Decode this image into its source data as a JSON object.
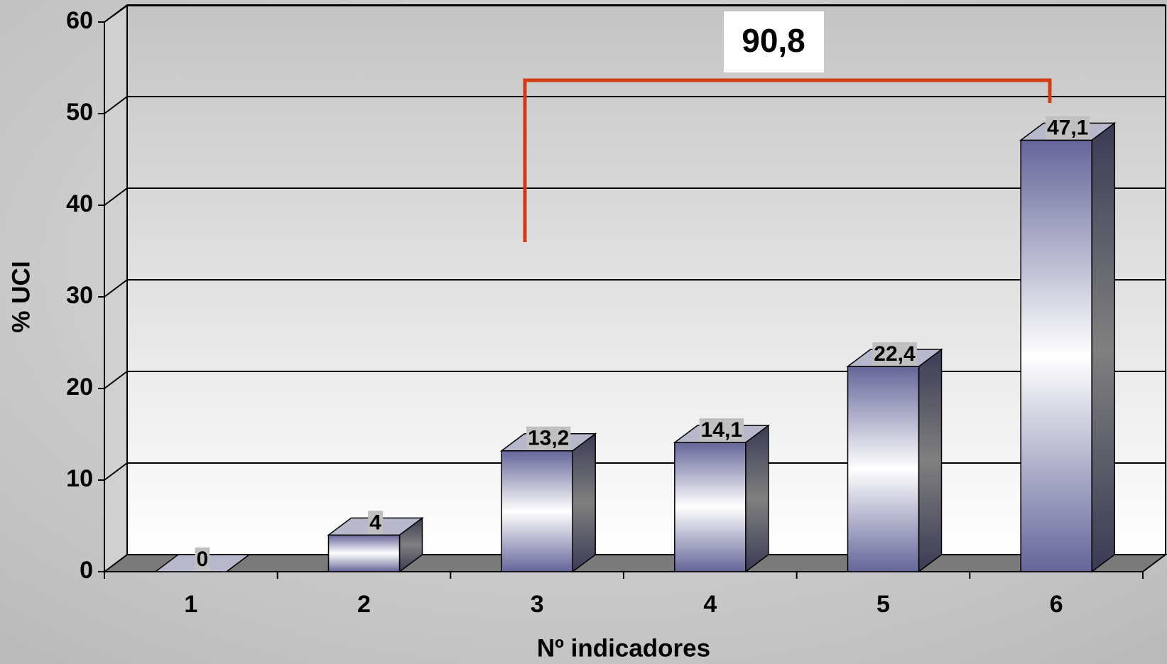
{
  "chart_data": {
    "type": "bar3d",
    "x_label": "Nº indicadores",
    "y_label": "% UCI",
    "categories": [
      "1",
      "2",
      "3",
      "4",
      "5",
      "6"
    ],
    "values": [
      0,
      4,
      13.2,
      14.1,
      22.4,
      47.1
    ],
    "value_labels": [
      "0",
      "4",
      "13,2",
      "14,1",
      "22,4",
      "47,1"
    ],
    "annotation": "90,8",
    "annotation_color": "#d23c10",
    "color": "#6a6a9c",
    "ylim": [
      0,
      60
    ],
    "yticks": [
      0,
      10,
      20,
      30,
      40,
      50,
      60
    ],
    "grid": true
  }
}
